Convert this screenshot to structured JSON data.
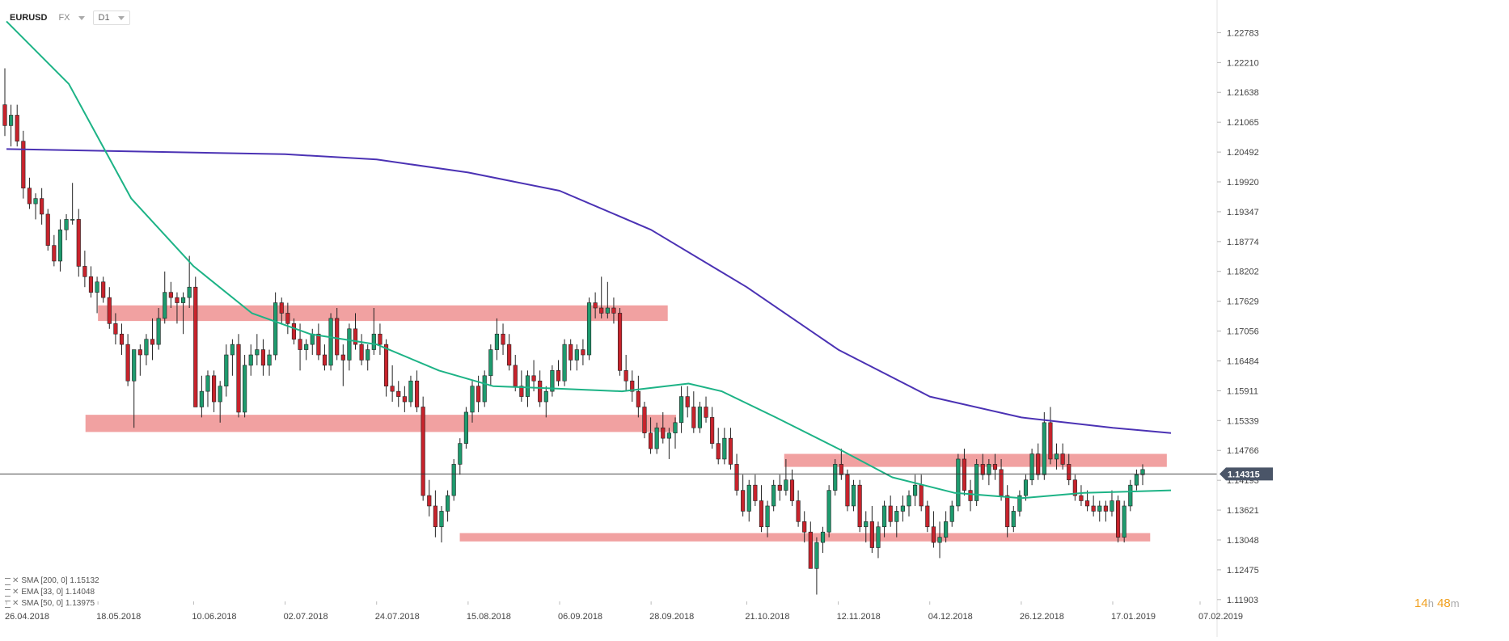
{
  "header": {
    "symbol": "EURUSD",
    "market": "FX",
    "timeframe": "D1"
  },
  "legend": [
    {
      "label": "SMA [200, 0] 1.15132",
      "color": "#4b32b4"
    },
    {
      "label": "EMA [33, 0] 1.14048",
      "color": "#e05a5a"
    },
    {
      "label": "SMA [50, 0] 1.13975",
      "color": "#1db386"
    }
  ],
  "countdown": {
    "hours": "14",
    "hours_unit": "h",
    "minutes": "48",
    "minutes_unit": "m"
  },
  "chart_data": {
    "type": "candlestick",
    "symbol": "EURUSD",
    "timeframe": "D1",
    "current_price": 1.14315,
    "current_price_label": "1.14315",
    "ylim": [
      1.119,
      1.231
    ],
    "y_ticks": [
      "1.22783",
      "1.22210",
      "1.21638",
      "1.21065",
      "1.20492",
      "1.19920",
      "1.19347",
      "1.18774",
      "1.18202",
      "1.17629",
      "1.17056",
      "1.16484",
      "1.15911",
      "1.15339",
      "1.14766",
      "1.14193",
      "1.13621",
      "1.13048",
      "1.12475",
      "1.11903"
    ],
    "x_ticks": [
      "26.04.2018",
      "18.05.2018",
      "10.06.2018",
      "02.07.2018",
      "24.07.2018",
      "15.08.2018",
      "06.09.2018",
      "28.09.2018",
      "21.10.2018",
      "12.11.2018",
      "04.12.2018",
      "26.12.2018",
      "17.01.2019",
      "07.02.2019"
    ],
    "colors": {
      "up": "#1e9b6e",
      "down": "#c8232c",
      "sma200": "#4b32b4",
      "sma50": "#1db386",
      "zone": "#ee8a8a",
      "price_label_bg": "#4a5568"
    },
    "zones": [
      {
        "start": "18.05.2018",
        "end": "02.10.2018",
        "y_low": 1.1725,
        "y_high": 1.1755
      },
      {
        "start": "15.05.2018",
        "end": "04.10.2018",
        "y_low": 1.1512,
        "y_high": 1.1545
      },
      {
        "start": "30.10.2018",
        "end": "30.01.2019",
        "y_low": 1.1445,
        "y_high": 1.147
      },
      {
        "start": "13.08.2018",
        "end": "26.01.2019",
        "y_low": 1.1302,
        "y_high": 1.1318
      }
    ],
    "candles": [
      [
        1.214,
        1.221,
        1.208,
        1.21
      ],
      [
        1.21,
        1.214,
        1.206,
        1.212
      ],
      [
        1.212,
        1.214,
        1.206,
        1.207
      ],
      [
        1.207,
        1.209,
        1.196,
        1.198
      ],
      [
        1.198,
        1.2,
        1.194,
        1.195
      ],
      [
        1.195,
        1.197,
        1.192,
        1.196
      ],
      [
        1.196,
        1.198,
        1.191,
        1.193
      ],
      [
        1.193,
        1.194,
        1.186,
        1.187
      ],
      [
        1.187,
        1.189,
        1.183,
        1.184
      ],
      [
        1.184,
        1.192,
        1.182,
        1.19
      ],
      [
        1.19,
        1.193,
        1.188,
        1.192
      ],
      [
        1.192,
        1.199,
        1.191,
        1.192
      ],
      [
        1.192,
        1.194,
        1.181,
        1.183
      ],
      [
        1.183,
        1.186,
        1.179,
        1.181
      ],
      [
        1.181,
        1.183,
        1.177,
        1.178
      ],
      [
        1.178,
        1.181,
        1.174,
        1.18
      ],
      [
        1.18,
        1.181,
        1.176,
        1.177
      ],
      [
        1.177,
        1.179,
        1.171,
        1.172
      ],
      [
        1.172,
        1.174,
        1.168,
        1.17
      ],
      [
        1.17,
        1.172,
        1.166,
        1.168
      ],
      [
        1.168,
        1.17,
        1.16,
        1.161
      ],
      [
        1.161,
        1.167,
        1.152,
        1.167
      ],
      [
        1.167,
        1.168,
        1.162,
        1.166
      ],
      [
        1.166,
        1.17,
        1.164,
        1.169
      ],
      [
        1.169,
        1.173,
        1.165,
        1.168
      ],
      [
        1.168,
        1.175,
        1.167,
        1.173
      ],
      [
        1.173,
        1.182,
        1.172,
        1.178
      ],
      [
        1.178,
        1.18,
        1.175,
        1.177
      ],
      [
        1.177,
        1.178,
        1.172,
        1.176
      ],
      [
        1.176,
        1.178,
        1.17,
        1.177
      ],
      [
        1.177,
        1.185,
        1.175,
        1.179
      ],
      [
        1.179,
        1.181,
        1.156,
        1.156
      ],
      [
        1.156,
        1.162,
        1.154,
        1.159
      ],
      [
        1.159,
        1.163,
        1.156,
        1.162
      ],
      [
        1.162,
        1.163,
        1.155,
        1.157
      ],
      [
        1.157,
        1.161,
        1.153,
        1.16
      ],
      [
        1.16,
        1.168,
        1.158,
        1.166
      ],
      [
        1.166,
        1.169,
        1.162,
        1.168
      ],
      [
        1.168,
        1.17,
        1.154,
        1.155
      ],
      [
        1.155,
        1.166,
        1.154,
        1.164
      ],
      [
        1.164,
        1.168,
        1.162,
        1.166
      ],
      [
        1.166,
        1.17,
        1.164,
        1.167
      ],
      [
        1.167,
        1.169,
        1.162,
        1.164
      ],
      [
        1.164,
        1.167,
        1.162,
        1.166
      ],
      [
        1.166,
        1.178,
        1.165,
        1.176
      ],
      [
        1.176,
        1.177,
        1.172,
        1.174
      ],
      [
        1.174,
        1.176,
        1.17,
        1.172
      ],
      [
        1.172,
        1.173,
        1.168,
        1.169
      ],
      [
        1.169,
        1.172,
        1.163,
        1.167
      ],
      [
        1.167,
        1.169,
        1.165,
        1.168
      ],
      [
        1.168,
        1.171,
        1.166,
        1.17
      ],
      [
        1.17,
        1.172,
        1.165,
        1.166
      ],
      [
        1.166,
        1.168,
        1.163,
        1.164
      ],
      [
        1.164,
        1.174,
        1.163,
        1.173
      ],
      [
        1.173,
        1.175,
        1.165,
        1.166
      ],
      [
        1.166,
        1.168,
        1.16,
        1.165
      ],
      [
        1.165,
        1.172,
        1.163,
        1.171
      ],
      [
        1.171,
        1.174,
        1.167,
        1.168
      ],
      [
        1.168,
        1.17,
        1.164,
        1.165
      ],
      [
        1.165,
        1.168,
        1.163,
        1.167
      ],
      [
        1.167,
        1.175,
        1.166,
        1.17
      ],
      [
        1.17,
        1.172,
        1.166,
        1.168
      ],
      [
        1.168,
        1.169,
        1.158,
        1.16
      ],
      [
        1.16,
        1.164,
        1.157,
        1.159
      ],
      [
        1.159,
        1.161,
        1.156,
        1.158
      ],
      [
        1.158,
        1.16,
        1.155,
        1.157
      ],
      [
        1.157,
        1.162,
        1.156,
        1.161
      ],
      [
        1.161,
        1.163,
        1.155,
        1.156
      ],
      [
        1.156,
        1.158,
        1.138,
        1.139
      ],
      [
        1.139,
        1.142,
        1.135,
        1.137
      ],
      [
        1.137,
        1.14,
        1.131,
        1.133
      ],
      [
        1.133,
        1.137,
        1.13,
        1.136
      ],
      [
        1.136,
        1.14,
        1.134,
        1.139
      ],
      [
        1.139,
        1.146,
        1.138,
        1.145
      ],
      [
        1.145,
        1.15,
        1.143,
        1.149
      ],
      [
        1.149,
        1.156,
        1.148,
        1.155
      ],
      [
        1.155,
        1.161,
        1.153,
        1.16
      ],
      [
        1.16,
        1.162,
        1.155,
        1.157
      ],
      [
        1.157,
        1.163,
        1.156,
        1.162
      ],
      [
        1.162,
        1.168,
        1.16,
        1.167
      ],
      [
        1.167,
        1.173,
        1.165,
        1.17
      ],
      [
        1.17,
        1.172,
        1.166,
        1.168
      ],
      [
        1.168,
        1.17,
        1.163,
        1.164
      ],
      [
        1.164,
        1.166,
        1.159,
        1.16
      ],
      [
        1.16,
        1.163,
        1.157,
        1.158
      ],
      [
        1.158,
        1.163,
        1.156,
        1.162
      ],
      [
        1.162,
        1.165,
        1.159,
        1.161
      ],
      [
        1.161,
        1.163,
        1.156,
        1.157
      ],
      [
        1.157,
        1.16,
        1.154,
        1.159
      ],
      [
        1.159,
        1.164,
        1.158,
        1.163
      ],
      [
        1.163,
        1.165,
        1.16,
        1.161
      ],
      [
        1.161,
        1.169,
        1.16,
        1.168
      ],
      [
        1.168,
        1.169,
        1.163,
        1.165
      ],
      [
        1.165,
        1.168,
        1.163,
        1.167
      ],
      [
        1.167,
        1.169,
        1.164,
        1.166
      ],
      [
        1.166,
        1.177,
        1.165,
        1.176
      ],
      [
        1.176,
        1.178,
        1.173,
        1.175
      ],
      [
        1.175,
        1.181,
        1.173,
        1.174
      ],
      [
        1.174,
        1.18,
        1.173,
        1.175
      ],
      [
        1.175,
        1.177,
        1.172,
        1.174
      ],
      [
        1.174,
        1.175,
        1.162,
        1.163
      ],
      [
        1.163,
        1.166,
        1.159,
        1.161
      ],
      [
        1.161,
        1.163,
        1.157,
        1.159
      ],
      [
        1.159,
        1.162,
        1.154,
        1.156
      ],
      [
        1.156,
        1.157,
        1.15,
        1.151
      ],
      [
        1.151,
        1.154,
        1.147,
        1.148
      ],
      [
        1.148,
        1.153,
        1.147,
        1.152
      ],
      [
        1.152,
        1.155,
        1.149,
        1.15
      ],
      [
        1.15,
        1.152,
        1.146,
        1.151
      ],
      [
        1.151,
        1.154,
        1.148,
        1.153
      ],
      [
        1.153,
        1.16,
        1.151,
        1.158
      ],
      [
        1.158,
        1.16,
        1.154,
        1.156
      ],
      [
        1.156,
        1.159,
        1.151,
        1.152
      ],
      [
        1.152,
        1.157,
        1.151,
        1.156
      ],
      [
        1.156,
        1.158,
        1.153,
        1.154
      ],
      [
        1.154,
        1.156,
        1.148,
        1.149
      ],
      [
        1.149,
        1.152,
        1.145,
        1.146
      ],
      [
        1.146,
        1.152,
        1.145,
        1.15
      ],
      [
        1.15,
        1.152,
        1.144,
        1.145
      ],
      [
        1.145,
        1.147,
        1.139,
        1.14
      ],
      [
        1.14,
        1.143,
        1.135,
        1.136
      ],
      [
        1.136,
        1.142,
        1.134,
        1.141
      ],
      [
        1.141,
        1.143,
        1.137,
        1.138
      ],
      [
        1.138,
        1.141,
        1.132,
        1.133
      ],
      [
        1.133,
        1.138,
        1.131,
        1.137
      ],
      [
        1.137,
        1.142,
        1.136,
        1.141
      ],
      [
        1.141,
        1.143,
        1.138,
        1.14
      ],
      [
        1.14,
        1.146,
        1.139,
        1.142
      ],
      [
        1.142,
        1.144,
        1.137,
        1.138
      ],
      [
        1.138,
        1.14,
        1.133,
        1.134
      ],
      [
        1.134,
        1.136,
        1.13,
        1.132
      ],
      [
        1.132,
        1.134,
        1.125,
        1.125
      ],
      [
        1.125,
        1.131,
        1.12,
        1.13
      ],
      [
        1.13,
        1.133,
        1.128,
        1.132
      ],
      [
        1.132,
        1.141,
        1.131,
        1.14
      ],
      [
        1.14,
        1.146,
        1.139,
        1.145
      ],
      [
        1.145,
        1.148,
        1.142,
        1.143
      ],
      [
        1.143,
        1.144,
        1.136,
        1.137
      ],
      [
        1.137,
        1.142,
        1.136,
        1.141
      ],
      [
        1.141,
        1.142,
        1.132,
        1.133
      ],
      [
        1.133,
        1.136,
        1.13,
        1.134
      ],
      [
        1.134,
        1.137,
        1.128,
        1.129
      ],
      [
        1.129,
        1.134,
        1.127,
        1.133
      ],
      [
        1.133,
        1.138,
        1.131,
        1.137
      ],
      [
        1.137,
        1.139,
        1.133,
        1.134
      ],
      [
        1.134,
        1.137,
        1.131,
        1.136
      ],
      [
        1.136,
        1.139,
        1.134,
        1.137
      ],
      [
        1.137,
        1.14,
        1.135,
        1.139
      ],
      [
        1.139,
        1.143,
        1.137,
        1.141
      ],
      [
        1.141,
        1.143,
        1.136,
        1.137
      ],
      [
        1.137,
        1.138,
        1.132,
        1.133
      ],
      [
        1.133,
        1.136,
        1.129,
        1.13
      ],
      [
        1.13,
        1.134,
        1.127,
        1.131
      ],
      [
        1.131,
        1.136,
        1.13,
        1.134
      ],
      [
        1.134,
        1.138,
        1.133,
        1.137
      ],
      [
        1.137,
        1.147,
        1.136,
        1.146
      ],
      [
        1.146,
        1.148,
        1.139,
        1.14
      ],
      [
        1.14,
        1.142,
        1.136,
        1.138
      ],
      [
        1.138,
        1.146,
        1.137,
        1.145
      ],
      [
        1.145,
        1.147,
        1.142,
        1.143
      ],
      [
        1.143,
        1.146,
        1.141,
        1.145
      ],
      [
        1.145,
        1.147,
        1.142,
        1.144
      ],
      [
        1.144,
        1.146,
        1.138,
        1.139
      ],
      [
        1.139,
        1.141,
        1.131,
        1.133
      ],
      [
        1.133,
        1.137,
        1.132,
        1.136
      ],
      [
        1.136,
        1.14,
        1.135,
        1.139
      ],
      [
        1.139,
        1.143,
        1.138,
        1.142
      ],
      [
        1.142,
        1.148,
        1.141,
        1.147
      ],
      [
        1.147,
        1.149,
        1.142,
        1.143
      ],
      [
        1.143,
        1.155,
        1.142,
        1.153
      ],
      [
        1.153,
        1.156,
        1.145,
        1.146
      ],
      [
        1.146,
        1.149,
        1.144,
        1.147
      ],
      [
        1.147,
        1.149,
        1.144,
        1.145
      ],
      [
        1.145,
        1.147,
        1.141,
        1.142
      ],
      [
        1.142,
        1.143,
        1.138,
        1.139
      ],
      [
        1.139,
        1.141,
        1.137,
        1.138
      ],
      [
        1.138,
        1.14,
        1.136,
        1.137
      ],
      [
        1.137,
        1.139,
        1.135,
        1.136
      ],
      [
        1.136,
        1.138,
        1.134,
        1.137
      ],
      [
        1.137,
        1.138,
        1.134,
        1.136
      ],
      [
        1.136,
        1.14,
        1.135,
        1.138
      ],
      [
        1.138,
        1.139,
        1.13,
        1.131
      ],
      [
        1.131,
        1.138,
        1.13,
        1.137
      ],
      [
        1.137,
        1.142,
        1.136,
        1.141
      ],
      [
        1.141,
        1.144,
        1.14,
        1.143
      ],
      [
        1.143,
        1.145,
        1.141,
        1.144
      ]
    ],
    "sma50": [
      [
        "26.04.2018",
        1.23
      ],
      [
        "11.05.2018",
        1.218
      ],
      [
        "26.05.2018",
        1.196
      ],
      [
        "10.06.2018",
        1.183
      ],
      [
        "24.06.2018",
        1.174
      ],
      [
        "08.07.2018",
        1.17
      ],
      [
        "24.07.2018",
        1.168
      ],
      [
        "08.08.2018",
        1.163
      ],
      [
        "21.08.2018",
        1.16
      ],
      [
        "06.09.2018",
        1.1595
      ],
      [
        "21.09.2018",
        1.159
      ],
      [
        "07.10.2018",
        1.1605
      ],
      [
        "15.10.2018",
        1.159
      ],
      [
        "28.10.2018",
        1.154
      ],
      [
        "12.11.2018",
        1.148
      ],
      [
        "25.11.2018",
        1.1425
      ],
      [
        "10.12.2018",
        1.1395
      ],
      [
        "26.12.2018",
        1.1385
      ],
      [
        "10.01.2019",
        1.1395
      ],
      [
        "31.01.2019",
        1.14
      ]
    ],
    "sma200": [
      [
        "26.04.2018",
        1.2055
      ],
      [
        "02.07.2018",
        1.2045
      ],
      [
        "24.07.2018",
        1.2035
      ],
      [
        "15.08.2018",
        1.201
      ],
      [
        "06.09.2018",
        1.1975
      ],
      [
        "28.09.2018",
        1.19
      ],
      [
        "21.10.2018",
        1.179
      ],
      [
        "12.11.2018",
        1.167
      ],
      [
        "04.12.2018",
        1.158
      ],
      [
        "26.12.2018",
        1.154
      ],
      [
        "17.01.2019",
        1.152
      ],
      [
        "31.01.2019",
        1.151
      ]
    ]
  }
}
